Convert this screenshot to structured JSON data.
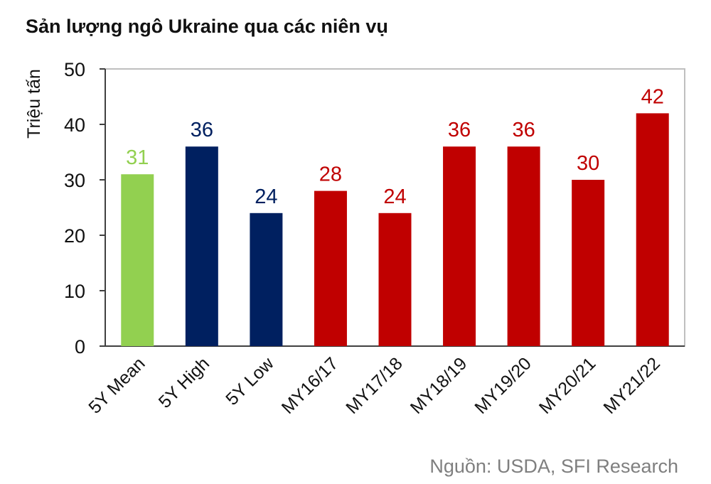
{
  "chart_data": {
    "type": "bar",
    "title": "Sản lượng ngô Ukraine qua các niên vụ",
    "ylabel": "Triệu tấn",
    "xlabel": "",
    "ylim": [
      0,
      50
    ],
    "yticks": [
      0,
      10,
      20,
      30,
      40,
      50
    ],
    "grid": false,
    "categories": [
      "5Y Mean",
      "5Y High",
      "5Y Low",
      "MY16/17",
      "MY17/18",
      "MY18/19",
      "MY19/20",
      "MY20/21",
      "MY21/22"
    ],
    "values": [
      31,
      36,
      24,
      28,
      24,
      36,
      36,
      30,
      42
    ],
    "data_labels": [
      "31",
      "36",
      "24",
      "28",
      "24",
      "36",
      "36",
      "30",
      "42"
    ],
    "bar_colors": [
      "#92d050",
      "#002060",
      "#002060",
      "#c00000",
      "#c00000",
      "#c00000",
      "#c00000",
      "#c00000",
      "#c00000"
    ],
    "source": "Nguồn: USDA, SFI Research"
  }
}
